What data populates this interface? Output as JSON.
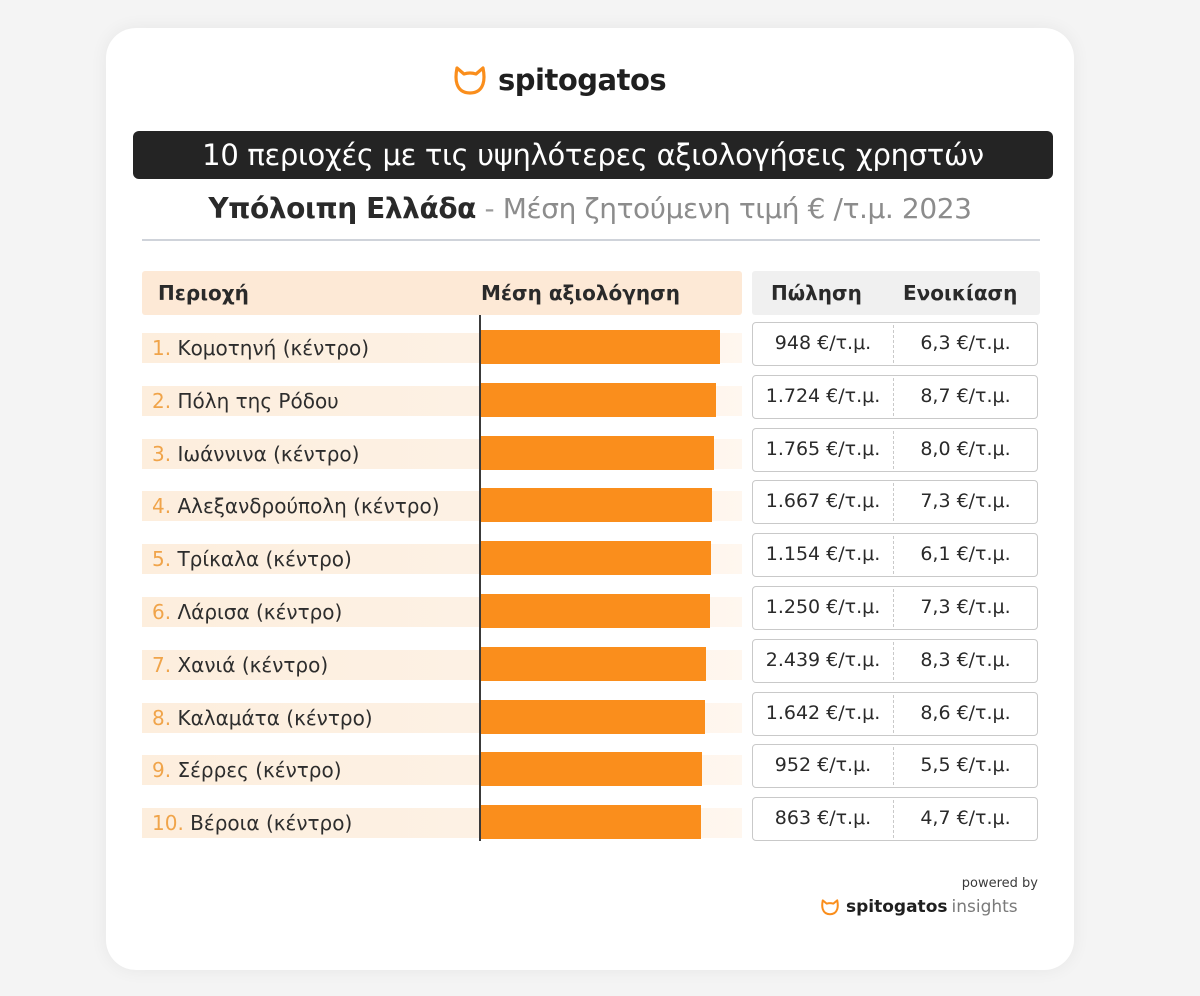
{
  "brand": {
    "name": "spitogatos",
    "logo_icon": "cat-head-icon",
    "accent_color": "#fa8e1c"
  },
  "title": "10 περιοχές με τις υψηλότερες αξιολογήσεις χρηστών",
  "subtitle": {
    "region": "Υπόλοιπη Ελλάδα",
    "dash": " - ",
    "metric": "Μέση ζητούμενη τιμή € /τ.μ. 2023"
  },
  "table": {
    "headers": {
      "area": "Περιοχή",
      "rating": "Μέση αξιολόγηση",
      "sale": "Πώληση",
      "rent": "Ενοικίαση"
    },
    "rows": [
      {
        "num": "1.",
        "area": "Κομοτηνή (κέντρο)",
        "sale": "948 €/τ.μ.",
        "rent": "6,3 €/τ.μ."
      },
      {
        "num": "2.",
        "area": "Πόλη της Ρόδου",
        "sale": "1.724 €/τ.μ.",
        "rent": "8,7 €/τ.μ."
      },
      {
        "num": "3.",
        "area": "Ιωάννινα (κέντρο)",
        "sale": "1.765 €/τ.μ.",
        "rent": "8,0 €/τ.μ."
      },
      {
        "num": "4.",
        "area": "Αλεξανδρούπολη (κέντρο)",
        "sale": "1.667 €/τ.μ.",
        "rent": "7,3 €/τ.μ."
      },
      {
        "num": "5.",
        "area": "Τρίκαλα (κέντρο)",
        "sale": "1.154 €/τ.μ.",
        "rent": "6,1 €/τ.μ."
      },
      {
        "num": "6.",
        "area": "Λάρισα (κέντρο)",
        "sale": "1.250 €/τ.μ.",
        "rent": "7,3 €/τ.μ."
      },
      {
        "num": "7.",
        "area": "Χανιά (κέντρο)",
        "sale": "2.439 €/τ.μ.",
        "rent": "8,3 €/τ.μ."
      },
      {
        "num": "8.",
        "area": "Καλαμάτα (κέντρο)",
        "sale": "1.642 €/τ.μ.",
        "rent": "8,6 €/τ.μ."
      },
      {
        "num": "9.",
        "area": "Σέρρες (κέντρο)",
        "sale": "952 €/τ.μ.",
        "rent": "5,5 €/τ.μ."
      },
      {
        "num": "10.",
        "area": "Βέροια (κέντρο)",
        "sale": "863 €/τ.μ.",
        "rent": "4,7 €/τ.μ."
      }
    ]
  },
  "chart_data": {
    "type": "bar",
    "orientation": "horizontal",
    "title": "10 περιοχές με τις υψηλότερες αξιολογήσεις χρηστών",
    "subtitle": "Υπόλοιπη Ελλάδα - Μέση ζητούμενη τιμή € /τ.μ. 2023",
    "xlabel": "Μέση αξιολόγηση",
    "ylabel": "Περιοχή",
    "categories": [
      "Κομοτηνή (κέντρο)",
      "Πόλη της Ρόδου",
      "Ιωάννινα (κέντρο)",
      "Αλεξανδρούπολη (κέντρο)",
      "Τρίκαλα (κέντρο)",
      "Λάρισα (κέντρο)",
      "Χανιά (κέντρο)",
      "Καλαμάτα (κέντρο)",
      "Σέρρες (κέντρο)",
      "Βέροια (κέντρο)"
    ],
    "values_relative": [
      1.0,
      0.985,
      0.975,
      0.966,
      0.962,
      0.958,
      0.941,
      0.936,
      0.924,
      0.92
    ],
    "axis_labels_shown": false,
    "grid": false,
    "legend": "none",
    "bar_color": "#fa8e1c"
  },
  "footer": {
    "powered_by": "powered by",
    "brand": "spitogatos",
    "product": "insights"
  }
}
